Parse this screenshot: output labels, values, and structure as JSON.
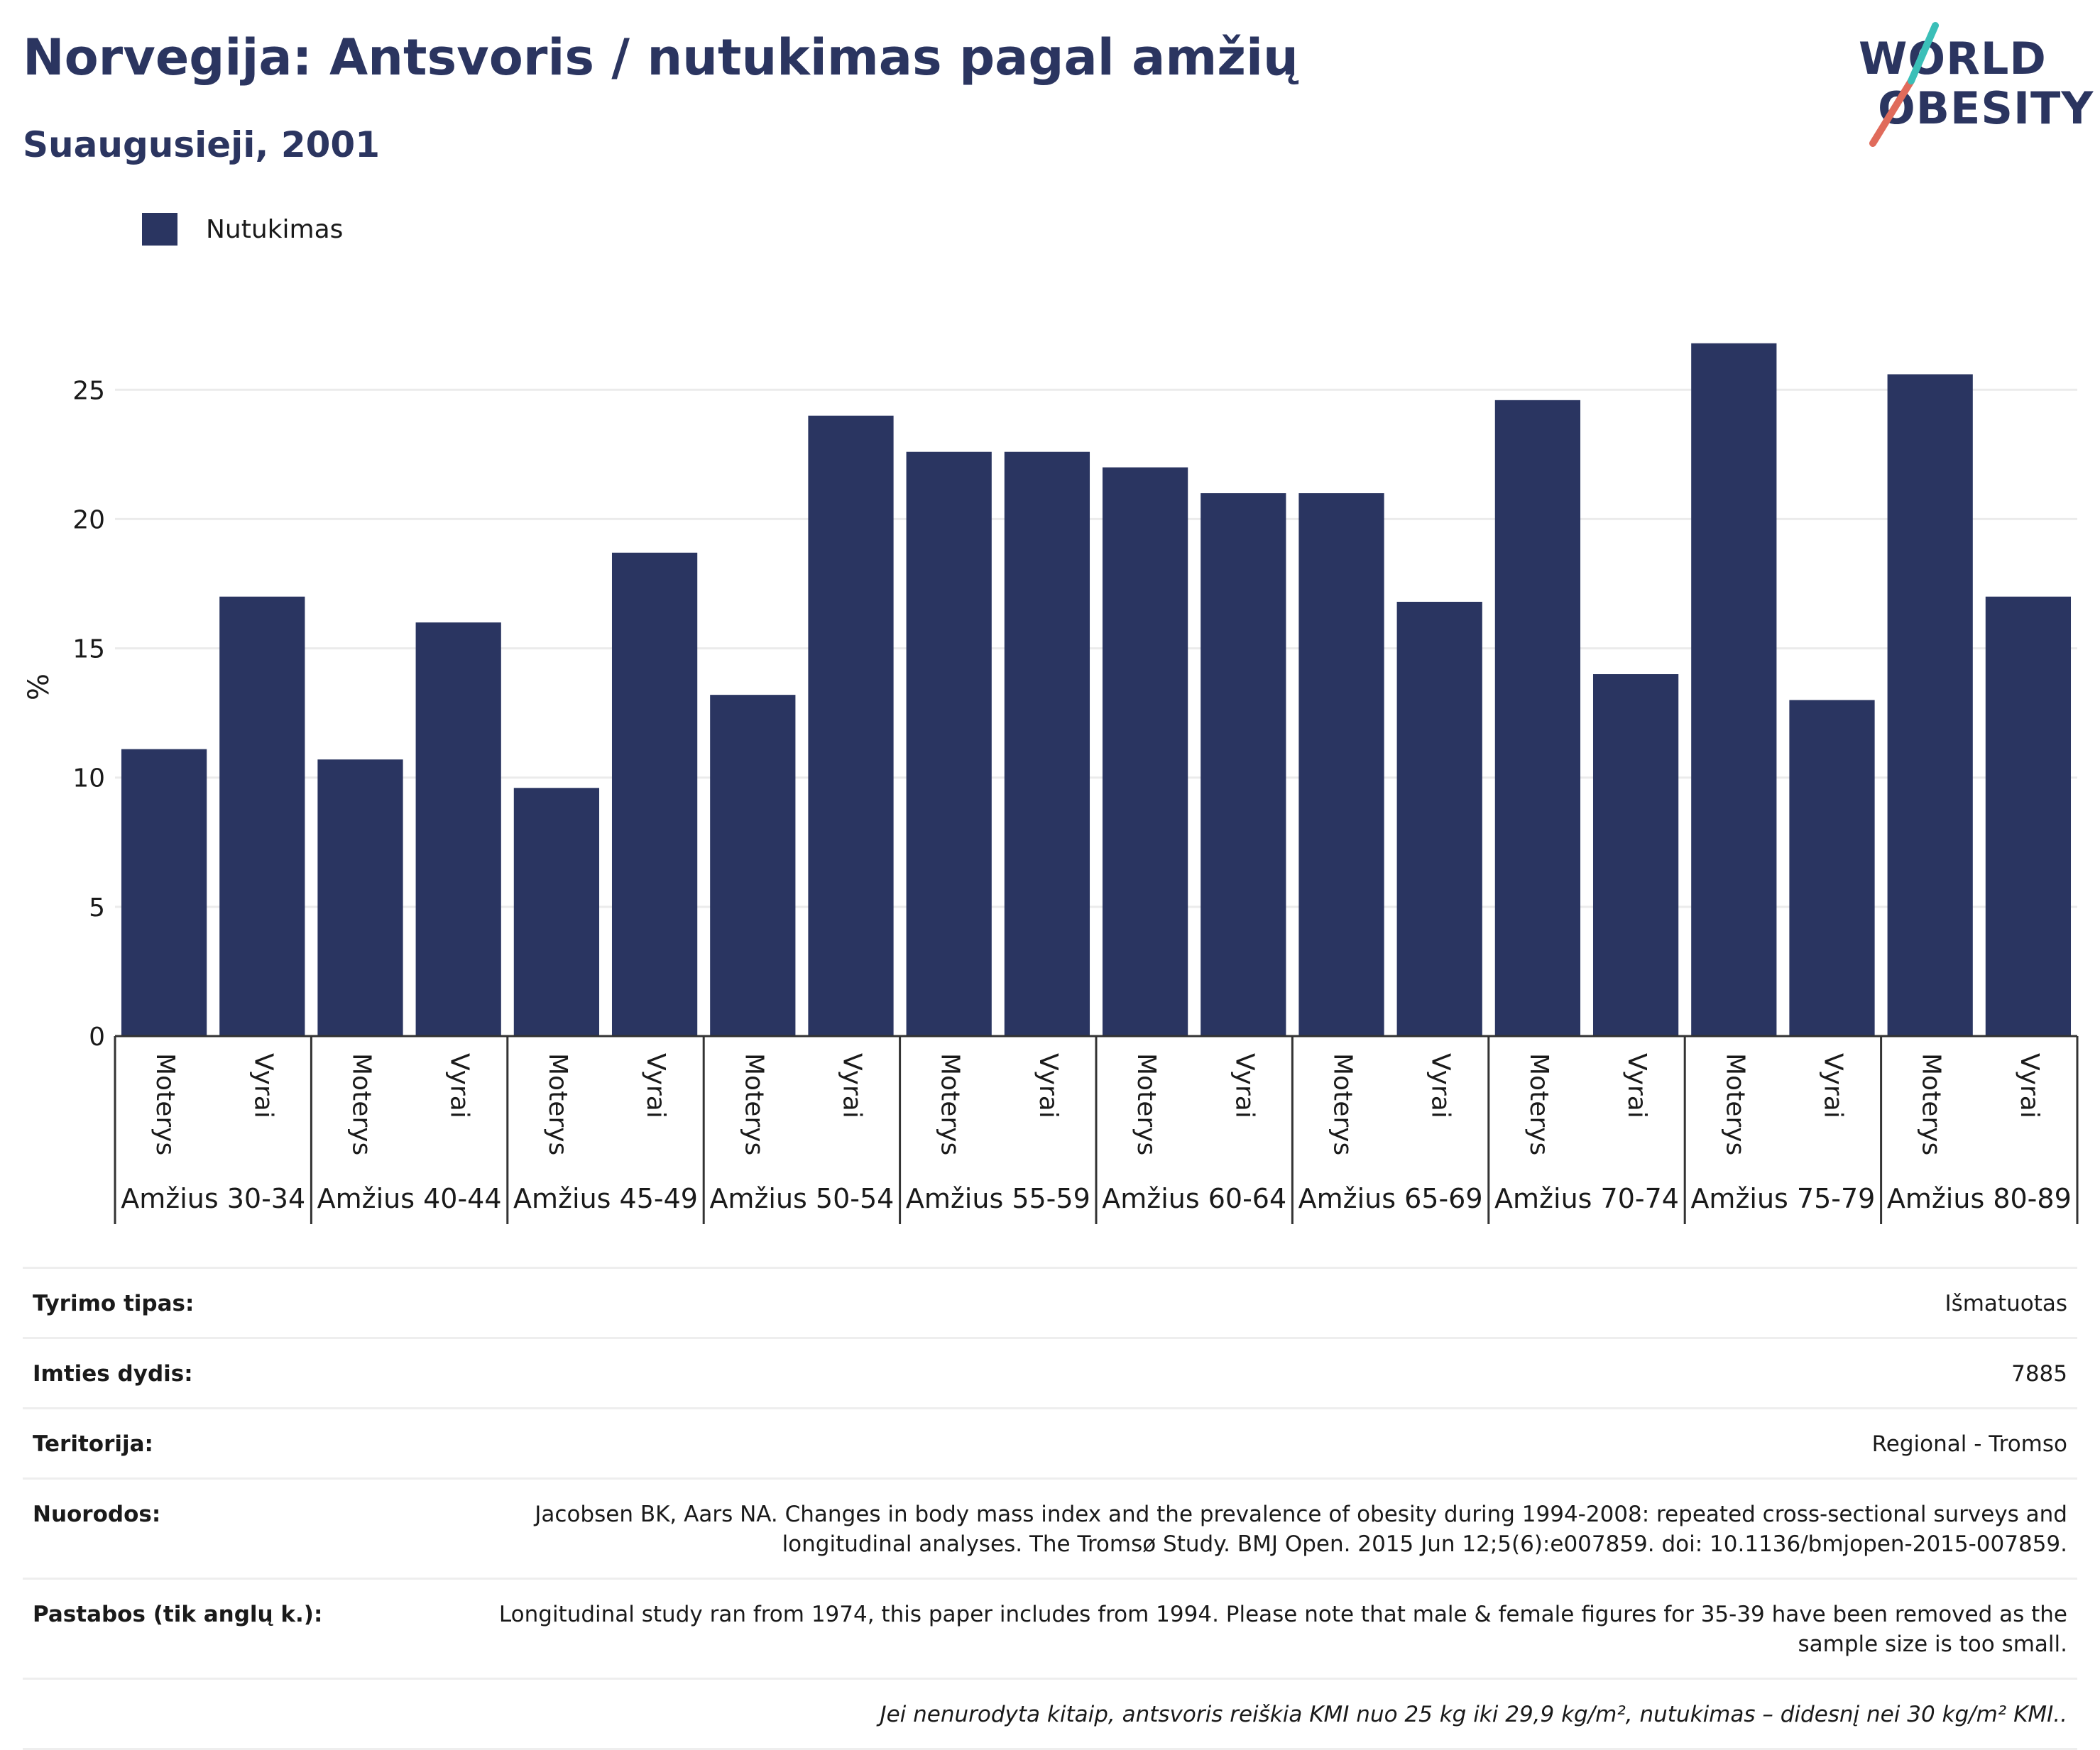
{
  "header": {
    "title": "Norvegija: Antsvoris / nutukimas pagal amžių",
    "subtitle": "Suaugusieji, 2001"
  },
  "logo": {
    "line1": "WORLD",
    "line2": "OBESITY",
    "colors": [
      "#2b3560",
      "#e06b5b",
      "#3bbfb8"
    ]
  },
  "chart_data": {
    "type": "bar",
    "legend": [
      {
        "name": "Nutukimas",
        "color": "#2a3561"
      }
    ],
    "ylabel": "%",
    "ylim": [
      0,
      28
    ],
    "yticks": [
      0,
      5,
      10,
      15,
      20,
      25
    ],
    "grid": true,
    "groups": [
      "Amžius 30-34",
      "Amžius 40-44",
      "Amžius 45-49",
      "Amžius 50-54",
      "Amžius 55-59",
      "Amžius 60-64",
      "Amžius 65-69",
      "Amžius 70-74",
      "Amžius 75-79",
      "Amžius 80-89"
    ],
    "subcategories": [
      "Moterys",
      "Vyrai"
    ],
    "series": [
      {
        "name": "Nutukimas",
        "values": [
          11.1,
          17.0,
          10.7,
          16.0,
          9.6,
          18.7,
          13.2,
          24.0,
          22.6,
          22.6,
          22.0,
          21.0,
          21.0,
          16.8,
          24.6,
          14.0,
          26.8,
          13.0,
          25.6,
          17.0
        ]
      }
    ]
  },
  "info": {
    "rows": [
      {
        "key": "Tyrimo tipas:",
        "value": "Išmatuotas"
      },
      {
        "key": "Imties dydis:",
        "value": "7885"
      },
      {
        "key": "Teritorija:",
        "value": "Regional - Tromso"
      },
      {
        "key": "Nuorodos:",
        "value": "Jacobsen BK, Aars NA. Changes in body mass index and the prevalence of obesity during 1994-2008: repeated cross-sectional surveys and longitudinal analyses. The Tromsø Study. BMJ Open. 2015 Jun 12;5(6):e007859. doi: 10.1136/bmjopen-2015-007859."
      },
      {
        "key": "Pastabos (tik anglų k.):",
        "value": "Longitudinal study ran from 1974, this paper includes from 1994. Please note that male & female figures for 35-39 have been removed as the sample size is too small."
      }
    ],
    "note": "Jei nenurodyta kitaip, antsvoris reiškia KMI nuo 25 kg iki 29,9 kg/m², nutukimas – didesnį nei 30 kg/m² KMI.."
  }
}
